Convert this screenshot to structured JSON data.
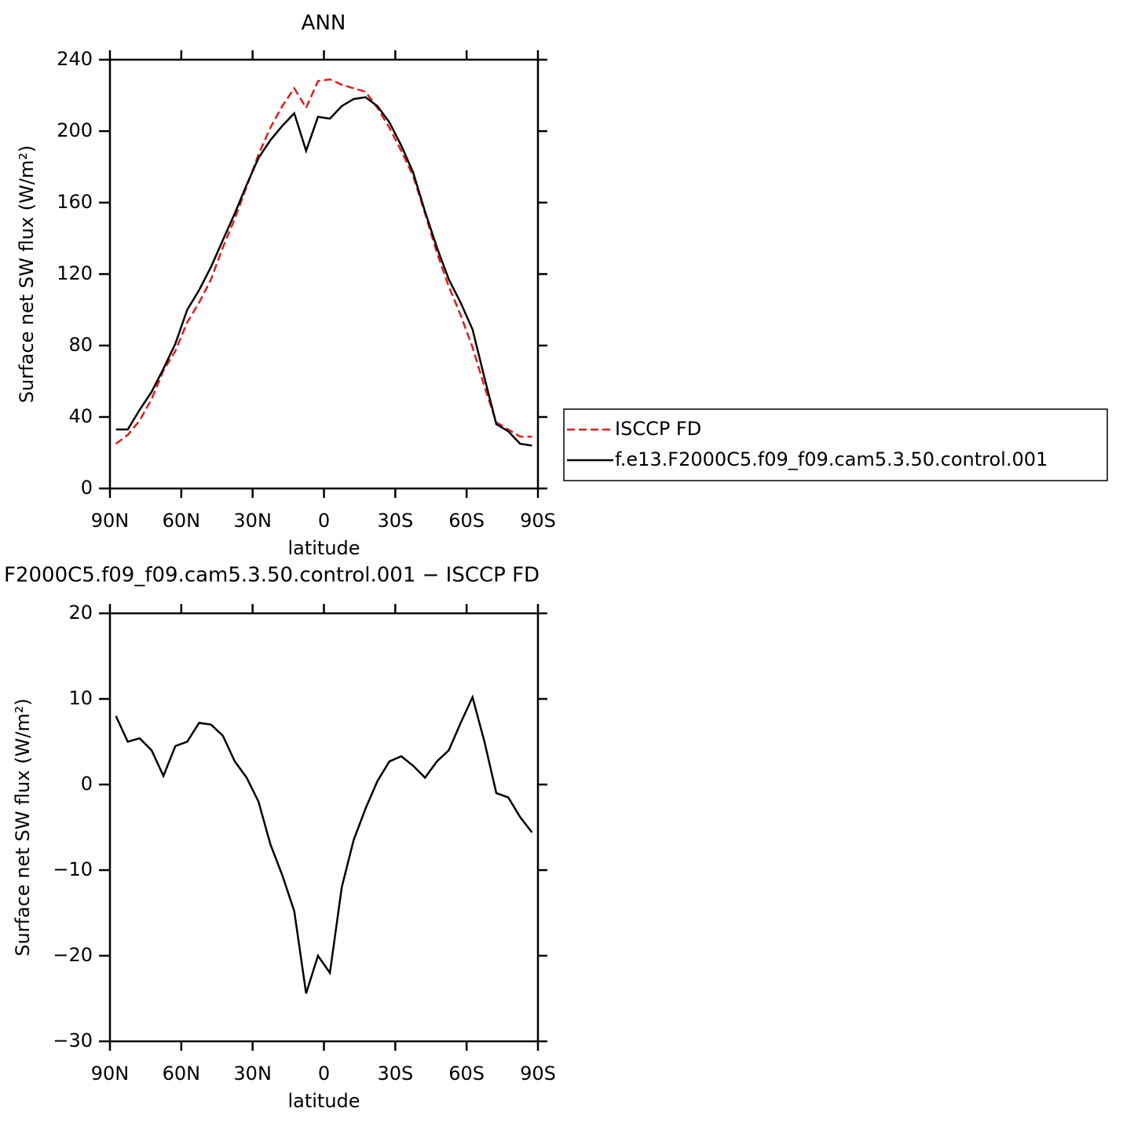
{
  "chart_data": [
    {
      "type": "line",
      "title": "ANN",
      "x_label": "latitude",
      "y_label": "Surface net SW flux (W/m²)",
      "x": [
        87.5,
        82.5,
        77.5,
        72.5,
        67.5,
        62.5,
        57.5,
        52.5,
        47.5,
        42.5,
        37.5,
        32.5,
        27.5,
        22.5,
        17.5,
        12.5,
        7.5,
        2.5,
        -2.5,
        -7.5,
        -12.5,
        -17.5,
        -22.5,
        -27.5,
        -32.5,
        -37.5,
        -42.5,
        -47.5,
        -52.5,
        -57.5,
        -62.5,
        -67.5,
        -72.5,
        -77.5,
        -82.5,
        -87.5
      ],
      "series": [
        {
          "name": "ISCCP FD",
          "color": "#e41a1c",
          "dash": true,
          "values": [
            25,
            30,
            38,
            50,
            66,
            77,
            93,
            104,
            117,
            135,
            151,
            169,
            187,
            202,
            214,
            224,
            213,
            228,
            229,
            226,
            224,
            222,
            213,
            202,
            189,
            175,
            154,
            132,
            113,
            97,
            79,
            57,
            37,
            33,
            29,
            29
          ]
        },
        {
          "name": "f.e13.F2000C5.f09_f09.cam5.3.50.control.001",
          "color": "#000000",
          "dash": false,
          "values": [
            33,
            33,
            44,
            54,
            67,
            81,
            100,
            111,
            124,
            139,
            154,
            170,
            185,
            195,
            203,
            210,
            189,
            208,
            207,
            214,
            218,
            219,
            214,
            205,
            192,
            177,
            155,
            135,
            117,
            104,
            89,
            62,
            36,
            32,
            25,
            24
          ]
        }
      ],
      "xlim": [
        90,
        -90
      ],
      "xticks": [
        {
          "value": 90,
          "label": "90N"
        },
        {
          "value": 60,
          "label": "60N"
        },
        {
          "value": 30,
          "label": "30N"
        },
        0,
        {
          "value": -30,
          "label": "30S"
        },
        {
          "value": -60,
          "label": "60S"
        },
        {
          "value": -90,
          "label": "90S"
        }
      ],
      "ylim": [
        0,
        240
      ],
      "yticks": [
        0,
        40,
        80,
        120,
        160,
        200,
        240
      ],
      "legend": "right"
    },
    {
      "type": "line",
      "title": "F2000C5.f09_f09.cam5.3.50.control.001 − ISCCP FD",
      "x_label": "latitude",
      "y_label": "Surface net SW flux (W/m²)",
      "x": [
        87.5,
        82.5,
        77.5,
        72.5,
        67.5,
        62.5,
        57.5,
        52.5,
        47.5,
        42.5,
        37.5,
        32.5,
        27.5,
        22.5,
        17.5,
        12.5,
        7.5,
        2.5,
        -2.5,
        -7.5,
        -12.5,
        -17.5,
        -22.5,
        -27.5,
        -32.5,
        -37.5,
        -42.5,
        -47.5,
        -52.5,
        -57.5,
        -62.5,
        -67.5,
        -72.5,
        -77.5,
        -82.5,
        -87.5
      ],
      "series": [
        {
          "color": "#000000",
          "dash": false,
          "values": [
            8,
            5,
            5.4,
            4,
            1,
            4.5,
            5,
            7.2,
            7,
            5.7,
            2.7,
            0.8,
            -2,
            -7,
            -10.6,
            -14.8,
            -24.4,
            -20,
            -22,
            -12,
            -6.5,
            -2.8,
            0.4,
            2.7,
            3.3,
            2.2,
            0.8,
            2.7,
            4,
            7.2,
            10.2,
            5,
            -1,
            -1.5,
            -3.8,
            -5.6
          ]
        }
      ],
      "xlim": [
        90,
        -90
      ],
      "xticks": [
        {
          "value": 90,
          "label": "90N"
        },
        {
          "value": 60,
          "label": "60N"
        },
        {
          "value": 30,
          "label": "30N"
        },
        0,
        {
          "value": -30,
          "label": "30S"
        },
        {
          "value": -60,
          "label": "60S"
        },
        {
          "value": -90,
          "label": "90S"
        }
      ],
      "ylim": [
        -30,
        20
      ],
      "yticks": [
        {
          "value": -30,
          "label": "−30"
        },
        {
          "value": -20,
          "label": "−20"
        },
        {
          "value": -10,
          "label": "−10"
        },
        0,
        10,
        20
      ]
    }
  ]
}
